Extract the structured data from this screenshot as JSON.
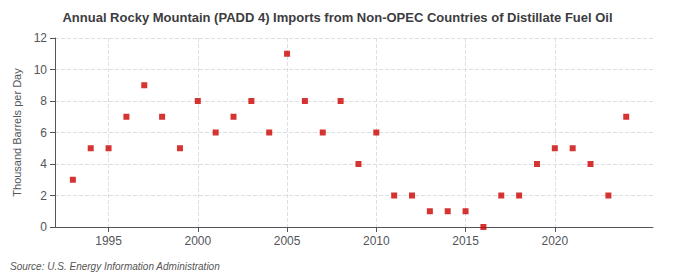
{
  "chart_data": {
    "type": "scatter",
    "title": "Annual Rocky Mountain (PADD 4) Imports from Non-OPEC Countries of Distillate Fuel Oil",
    "ylabel": "Thousand Barrels per Day",
    "annotations": [
      "Source: U.S. Energy Information Administration"
    ],
    "x": [
      1993,
      1994,
      1995,
      1996,
      1997,
      1998,
      1999,
      2000,
      2001,
      2002,
      2003,
      2004,
      2005,
      2006,
      2007,
      2008,
      2009,
      2010,
      2011,
      2012,
      2013,
      2014,
      2015,
      2016,
      2017,
      2018,
      2019,
      2020,
      2021,
      2022,
      2023,
      2024
    ],
    "values": [
      3,
      5,
      5,
      7,
      9,
      7,
      5,
      8,
      6,
      7,
      8,
      6,
      11,
      8,
      6,
      8,
      4,
      6,
      2,
      2,
      1,
      1,
      1,
      0,
      2,
      2,
      4,
      5,
      5,
      4,
      2,
      7
    ],
    "color": "#cc0000",
    "marker": "square",
    "xlim": [
      1992.0,
      2025.5
    ],
    "xticks": [
      1995,
      2000,
      2005,
      2010,
      2015,
      2020
    ],
    "ylim": [
      0,
      12
    ],
    "yticks": [
      0,
      2,
      4,
      6,
      8,
      10,
      12
    ],
    "grid": true
  }
}
